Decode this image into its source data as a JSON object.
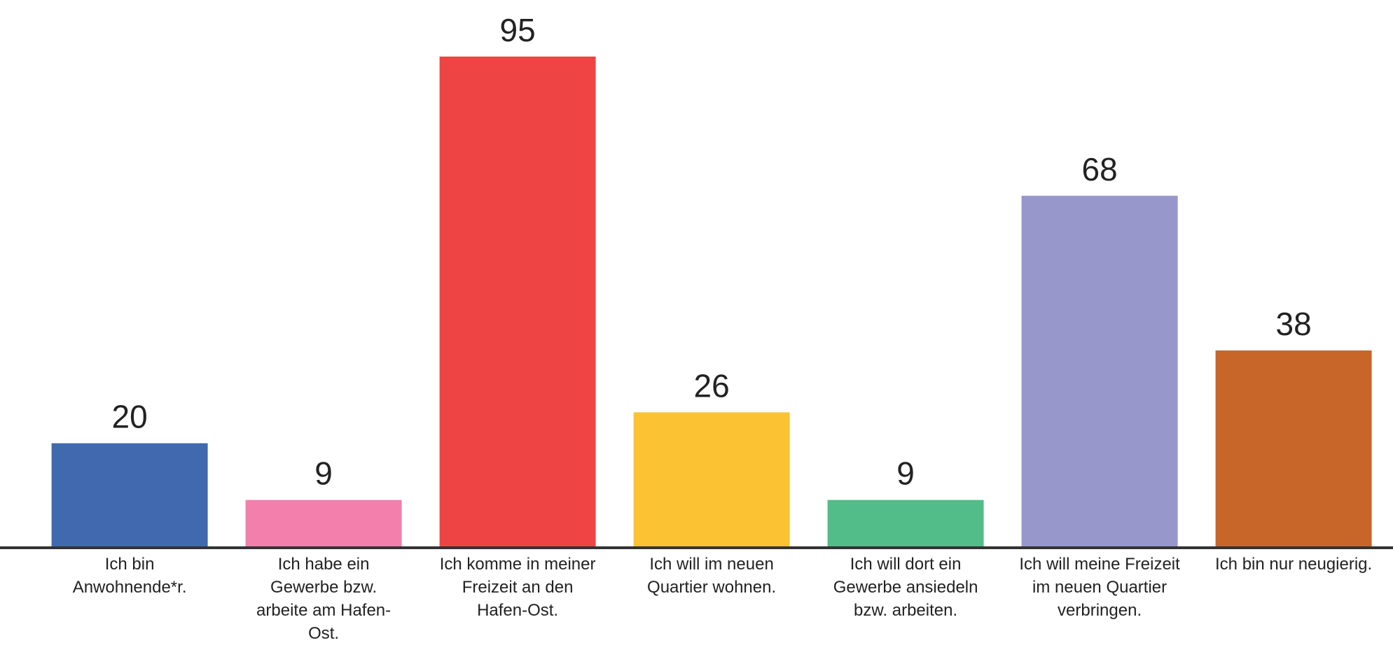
{
  "chart_data": {
    "type": "bar",
    "categories": [
      "Ich bin Anwohnende*r.",
      "Ich habe ein Gewerbe bzw. arbeite am Hafen-Ost.",
      "Ich komme in meiner Freizeit an den Hafen-Ost.",
      "Ich will im neuen Quartier wohnen.",
      "Ich will dort ein Gewerbe ansiedeln bzw. arbeiten.",
      "Ich will meine Freizeit im neuen Quartier verbringen.",
      "Ich bin nur neugierig."
    ],
    "values": [
      20,
      9,
      95,
      26,
      9,
      68,
      38
    ],
    "colors": [
      "#4169b0",
      "#f27fac",
      "#ee4444",
      "#fbc334",
      "#52bd88",
      "#9897cb",
      "#c8662a"
    ],
    "ylim": [
      0,
      100
    ]
  }
}
